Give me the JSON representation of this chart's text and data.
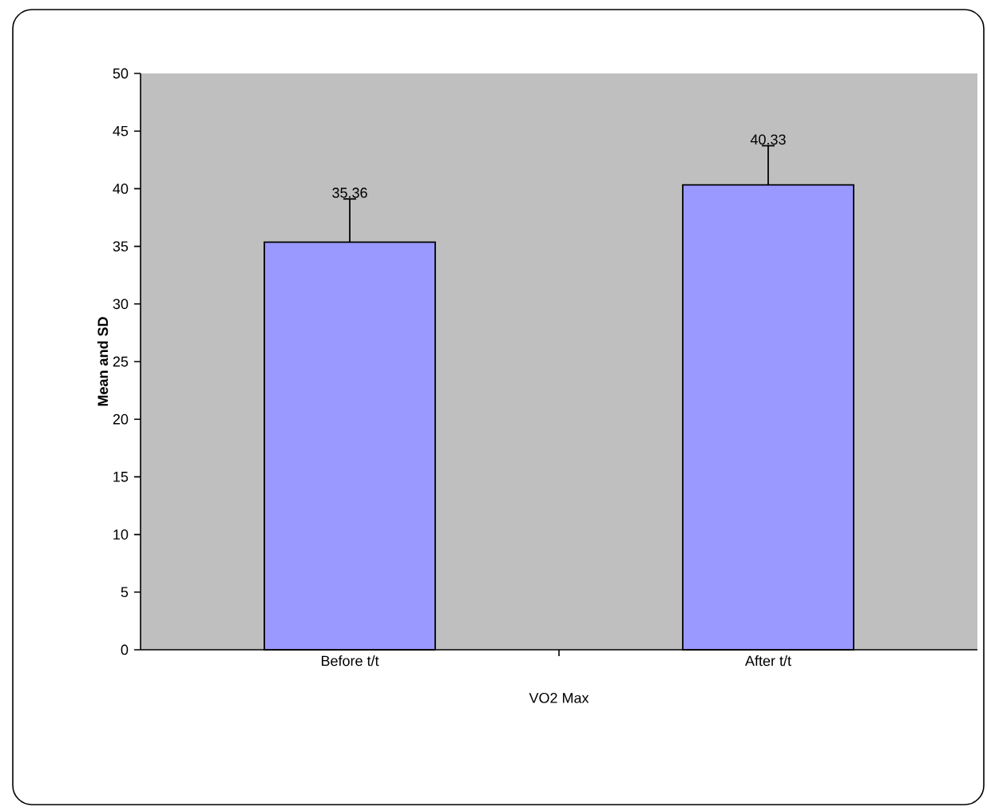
{
  "chart_data": {
    "type": "bar",
    "xlabel": "VO2 Max",
    "ylabel": "Mean and SD",
    "categories": [
      "Before t/t",
      "After t/t"
    ],
    "values": [
      35.36,
      40.33
    ],
    "errors": [
      3.75,
      3.4
    ],
    "value_labels": [
      "35.36",
      "40.33"
    ],
    "color": "#9999ff",
    "ylim": [
      0,
      50
    ],
    "yticks": [
      0,
      5,
      10,
      15,
      20,
      25,
      30,
      35,
      40,
      45,
      50
    ],
    "grid": false
  }
}
